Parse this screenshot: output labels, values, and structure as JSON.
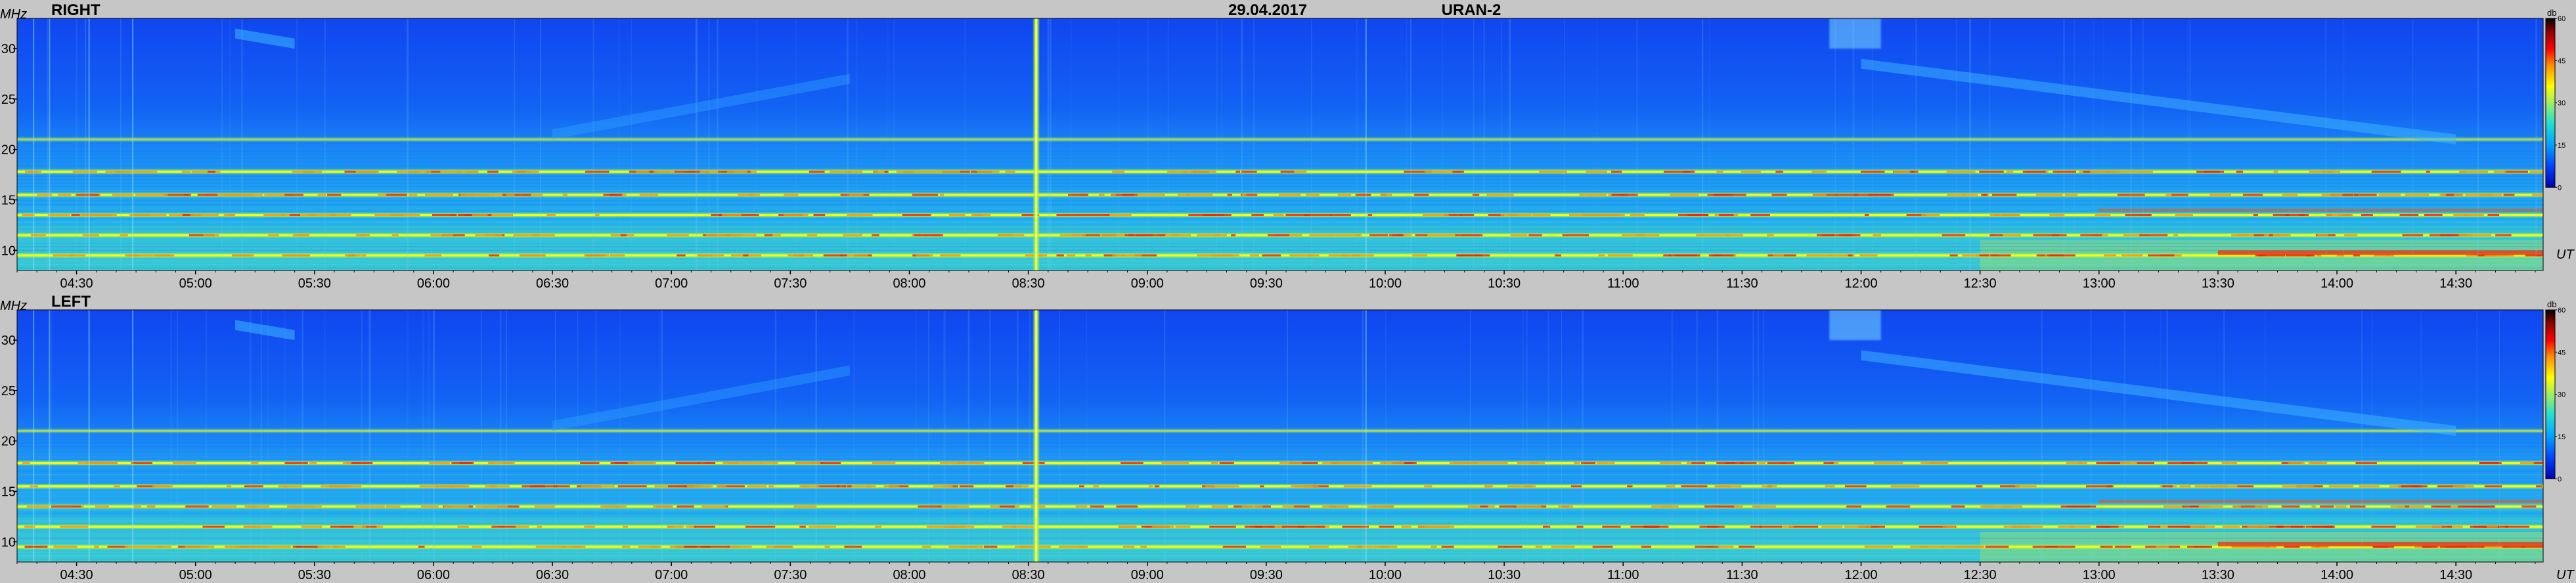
{
  "header": {
    "date": "29.04.2017",
    "instrument": "URAN-2"
  },
  "colorbar": {
    "unit": "db",
    "ticks": [
      0,
      15,
      30,
      45,
      60
    ]
  },
  "colors": {
    "background": "#c6c6c6",
    "scale": [
      "#0000b0",
      "#0040ff",
      "#00a0ff",
      "#20e0d0",
      "#a0f060",
      "#ffff00",
      "#ff9000",
      "#ff0000",
      "#900000",
      "#000000"
    ]
  },
  "chart_data": [
    {
      "type": "heatmap",
      "panel": "RIGHT",
      "ylabel": "MHz",
      "xlabel": "UT",
      "y_ticks": [
        10,
        15,
        20,
        25,
        30
      ],
      "ylim": [
        8,
        33
      ],
      "x_ticks": [
        "04:30",
        "05:00",
        "05:30",
        "06:00",
        "06:30",
        "07:00",
        "07:30",
        "08:00",
        "08:30",
        "09:00",
        "09:30",
        "10:00",
        "10:30",
        "11:00",
        "11:30",
        "12:00",
        "12:30",
        "13:00",
        "13:30",
        "14:00",
        "14:30"
      ],
      "xlim": [
        "04:15",
        "14:52"
      ],
      "zlim": [
        0,
        60
      ],
      "features": {
        "horizontal_bands_mhz": [
          9.5,
          11.5,
          13.5,
          15.5,
          17.8,
          21.0
        ],
        "vertical_burst_time": "08:32",
        "drift_structures": [
          "05:10-05:25 at 30-32 MHz",
          "06:30-07:45 rising 22-27 MHz",
          "12:00-14:30 falling 29-21 MHz"
        ]
      }
    },
    {
      "type": "heatmap",
      "panel": "LEFT",
      "ylabel": "MHz",
      "xlabel": "UT",
      "y_ticks": [
        10,
        15,
        20,
        25,
        30
      ],
      "ylim": [
        8,
        33
      ],
      "x_ticks": [
        "04:30",
        "05:00",
        "05:30",
        "06:00",
        "06:30",
        "07:00",
        "07:30",
        "08:00",
        "08:30",
        "09:00",
        "09:30",
        "10:00",
        "10:30",
        "11:00",
        "11:30",
        "12:00",
        "12:30",
        "13:00",
        "13:30",
        "14:00",
        "14:30"
      ],
      "xlim": [
        "04:15",
        "14:52"
      ],
      "zlim": [
        0,
        60
      ],
      "features": {
        "horizontal_bands_mhz": [
          9.5,
          11.5,
          13.5,
          15.5,
          17.8,
          21.0
        ],
        "vertical_burst_time": "08:32",
        "drift_structures": [
          "05:10-05:25 at 30-32 MHz",
          "06:30-07:45 rising 22-27 MHz",
          "12:00-14:30 falling 29-21 MHz"
        ]
      }
    }
  ]
}
